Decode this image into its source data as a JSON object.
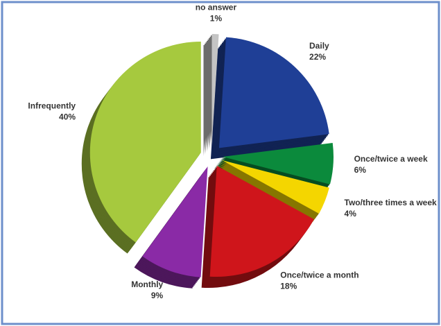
{
  "chart_data": {
    "type": "pie",
    "categories": [
      "no answer",
      "Daily",
      "Once/twice a week",
      "Two/three times a week",
      "Once/twice a month",
      "Monthly",
      "Infrequently"
    ],
    "values": [
      1,
      22,
      6,
      4,
      18,
      9,
      40
    ],
    "value_labels": [
      "1%",
      "22%",
      "6%",
      "4%",
      "18%",
      "9%",
      "40%"
    ],
    "colors": [
      "#c4c4c4",
      "#1f3f96",
      "#0b8a3c",
      "#f4d600",
      "#cf151b",
      "#8a2aa6",
      "#a6c93e"
    ]
  }
}
